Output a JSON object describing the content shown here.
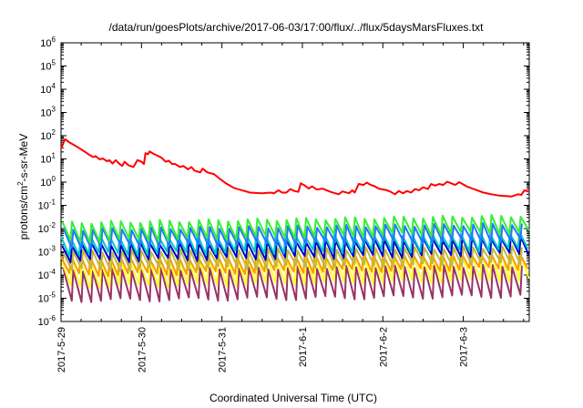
{
  "chart_data": {
    "type": "line",
    "title": "/data/run/goesPlots/archive/2017-06-03/17:00/flux/../flux/5daysMarsFluxes.txt",
    "xlabel": "Coordinated Universal Time (UTC)",
    "ylabel": "protons/cm²-s-sr-MeV",
    "y_scale": "log",
    "ylim_exponents": [
      -6,
      6
    ],
    "y_ticks": [
      {
        "base": "10",
        "exp": "-6"
      },
      {
        "base": "10",
        "exp": "-5"
      },
      {
        "base": "10",
        "exp": "-4"
      },
      {
        "base": "10",
        "exp": "-3"
      },
      {
        "base": "10",
        "exp": "-2"
      },
      {
        "base": "10",
        "exp": "-1"
      },
      {
        "base": "10",
        "exp": "0"
      },
      {
        "base": "10",
        "exp": "1"
      },
      {
        "base": "10",
        "exp": "2"
      },
      {
        "base": "10",
        "exp": "3"
      },
      {
        "base": "10",
        "exp": "4"
      },
      {
        "base": "10",
        "exp": "5"
      },
      {
        "base": "10",
        "exp": "6"
      }
    ],
    "x_ticks": [
      "2017-5-29",
      "2017-5-30",
      "2017-5-31",
      "2017-6-1",
      "2017-6-2",
      "2017-6-3"
    ],
    "x_range_days": [
      0,
      5.82
    ],
    "grid": false,
    "legend": "none",
    "series": [
      {
        "color": "#ff0000",
        "log10_values": [
          [
            0.0,
            1.45
          ],
          [
            0.05,
            1.85
          ],
          [
            0.1,
            1.72
          ],
          [
            0.2,
            1.52
          ],
          [
            0.3,
            1.3
          ],
          [
            0.35,
            1.18
          ],
          [
            0.4,
            1.08
          ],
          [
            0.43,
            1.12
          ],
          [
            0.48,
            0.98
          ],
          [
            0.52,
            1.02
          ],
          [
            0.57,
            0.9
          ],
          [
            0.6,
            0.95
          ],
          [
            0.64,
            0.8
          ],
          [
            0.68,
            0.95
          ],
          [
            0.72,
            0.8
          ],
          [
            0.76,
            0.7
          ],
          [
            0.79,
            0.88
          ],
          [
            0.84,
            0.72
          ],
          [
            0.9,
            0.65
          ],
          [
            0.95,
            0.95
          ],
          [
            1.0,
            0.88
          ],
          [
            1.03,
            0.78
          ],
          [
            1.05,
            1.25
          ],
          [
            1.08,
            1.2
          ],
          [
            1.1,
            1.32
          ],
          [
            1.15,
            1.22
          ],
          [
            1.25,
            1.05
          ],
          [
            1.3,
            0.88
          ],
          [
            1.34,
            0.92
          ],
          [
            1.38,
            0.78
          ],
          [
            1.42,
            0.78
          ],
          [
            1.48,
            0.65
          ],
          [
            1.52,
            0.7
          ],
          [
            1.58,
            0.55
          ],
          [
            1.62,
            0.65
          ],
          [
            1.66,
            0.5
          ],
          [
            1.73,
            0.42
          ],
          [
            1.76,
            0.58
          ],
          [
            1.82,
            0.42
          ],
          [
            1.9,
            0.35
          ],
          [
            1.96,
            0.18
          ],
          [
            2.05,
            -0.05
          ],
          [
            2.15,
            -0.25
          ],
          [
            2.25,
            -0.35
          ],
          [
            2.35,
            -0.45
          ],
          [
            2.5,
            -0.48
          ],
          [
            2.6,
            -0.45
          ],
          [
            2.65,
            -0.48
          ],
          [
            2.7,
            -0.35
          ],
          [
            2.75,
            -0.45
          ],
          [
            2.8,
            -0.45
          ],
          [
            2.85,
            -0.3
          ],
          [
            2.9,
            -0.38
          ],
          [
            2.95,
            -0.42
          ],
          [
            2.98,
            -0.05
          ],
          [
            3.03,
            -0.15
          ],
          [
            3.08,
            -0.28
          ],
          [
            3.12,
            -0.18
          ],
          [
            3.18,
            -0.32
          ],
          [
            3.25,
            -0.28
          ],
          [
            3.35,
            -0.42
          ],
          [
            3.45,
            -0.52
          ],
          [
            3.5,
            -0.4
          ],
          [
            3.58,
            -0.48
          ],
          [
            3.62,
            -0.35
          ],
          [
            3.65,
            -0.45
          ],
          [
            3.7,
            -0.08
          ],
          [
            3.76,
            -0.12
          ],
          [
            3.8,
            -0.02
          ],
          [
            3.85,
            -0.12
          ],
          [
            3.9,
            -0.18
          ],
          [
            3.95,
            -0.28
          ],
          [
            4.05,
            -0.35
          ],
          [
            4.1,
            -0.42
          ],
          [
            4.15,
            -0.52
          ],
          [
            4.2,
            -0.38
          ],
          [
            4.25,
            -0.48
          ],
          [
            4.3,
            -0.38
          ],
          [
            4.35,
            -0.45
          ],
          [
            4.4,
            -0.3
          ],
          [
            4.45,
            -0.35
          ],
          [
            4.5,
            -0.22
          ],
          [
            4.56,
            -0.3
          ],
          [
            4.6,
            -0.08
          ],
          [
            4.65,
            -0.15
          ],
          [
            4.7,
            -0.08
          ],
          [
            4.75,
            -0.12
          ],
          [
            4.8,
            0.02
          ],
          [
            4.85,
            -0.05
          ],
          [
            4.9,
            -0.12
          ],
          [
            4.95,
            0.0
          ],
          [
            5.05,
            -0.2
          ],
          [
            5.15,
            -0.32
          ],
          [
            5.25,
            -0.45
          ],
          [
            5.35,
            -0.52
          ],
          [
            5.45,
            -0.58
          ],
          [
            5.6,
            -0.62
          ],
          [
            5.68,
            -0.52
          ],
          [
            5.72,
            -0.55
          ],
          [
            5.76,
            -0.35
          ],
          [
            5.82,
            -0.42
          ]
        ]
      },
      {
        "color": "#33ee33",
        "log10_max": [
          -1.75,
          -1.45
        ],
        "log10_min": [
          -2.55,
          -2.15
        ]
      },
      {
        "color": "#2277ff",
        "log10_max": [
          -2.05,
          -1.8
        ],
        "log10_min": [
          -2.8,
          -2.5
        ]
      },
      {
        "color": "#00c8c8",
        "log10_max": [
          -2.35,
          -2.2
        ],
        "log10_min": [
          -3.1,
          -2.9
        ]
      },
      {
        "color": "#0000cc",
        "log10_max": [
          -2.7,
          -2.4
        ],
        "log10_min": [
          -3.4,
          -3.1
        ]
      },
      {
        "color": "#bbbb44",
        "log10_max": [
          -3.0,
          -2.8
        ],
        "log10_min": [
          -3.8,
          -3.5
        ]
      },
      {
        "color": "#ff9900",
        "log10_max": [
          -3.2,
          -3.0
        ],
        "log10_min": [
          -4.0,
          -3.7
        ]
      },
      {
        "color": "#ffff33",
        "log10_max": [
          -3.5,
          -3.1
        ],
        "log10_min": [
          -4.5,
          -4.2
        ]
      },
      {
        "color": "#993366",
        "log10_max": [
          -3.8,
          -3.6
        ],
        "log10_min": [
          -5.1,
          -4.9
        ]
      }
    ],
    "periodic_cycles": 48
  }
}
